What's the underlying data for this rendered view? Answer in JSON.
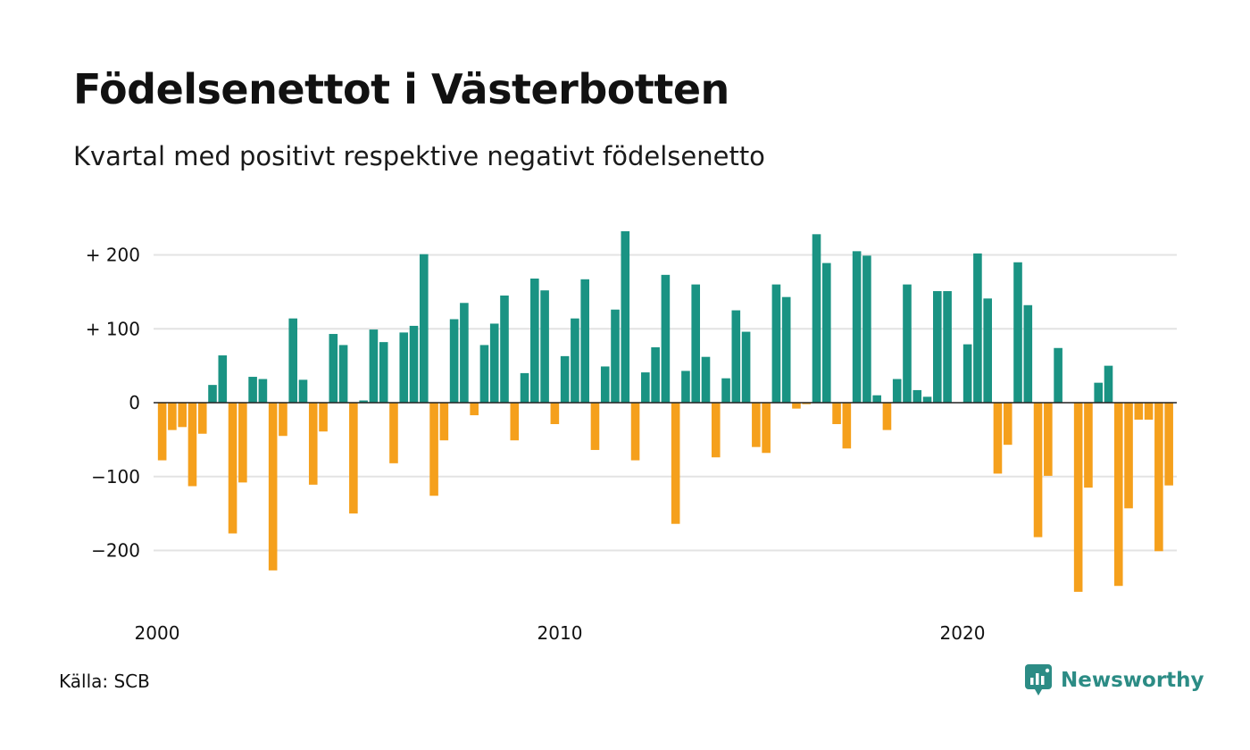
{
  "header": {
    "title": "Födelsenettot i Västerbotten",
    "subtitle": "Kvartal med positivt respektive negativt födelsenetto"
  },
  "footer": {
    "source": "Källa: SCB",
    "brand": "Newsworthy"
  },
  "colors": {
    "positive": "#1a9383",
    "negative": "#f5a01c",
    "grid": "#e3e3e3",
    "axis": "#222222",
    "brand": "#2c8c85"
  },
  "icons": {
    "brand_logo": "newsworthy-logo-icon"
  },
  "chart_data": {
    "type": "bar",
    "title": "Födelsenettot i Västerbotten",
    "subtitle": "Kvartal med positivt respektive negativt födelsenetto",
    "xlabel": "",
    "ylabel": "",
    "ylim": [
      -275,
      235
    ],
    "y_ticks": [
      {
        "value": 200,
        "label": "+ 200"
      },
      {
        "value": 100,
        "label": "+ 100"
      },
      {
        "value": 0,
        "label": "0"
      },
      {
        "value": -100,
        "label": "−100"
      },
      {
        "value": -200,
        "label": "−200"
      }
    ],
    "x_ticks": [
      {
        "value": 2000,
        "label": "2000"
      },
      {
        "value": 2010,
        "label": "2010"
      },
      {
        "value": 2020,
        "label": "2020"
      }
    ],
    "grid": true,
    "legend": "none",
    "start_quarter": "2000 Q1",
    "values": [
      -78,
      -37,
      -33,
      -113,
      -42,
      24,
      64,
      -177,
      -108,
      35,
      32,
      -227,
      -45,
      114,
      31,
      -111,
      -39,
      93,
      78,
      -150,
      3,
      99,
      82,
      -82,
      95,
      104,
      201,
      -126,
      -51,
      113,
      135,
      -17,
      78,
      107,
      145,
      -51,
      40,
      168,
      152,
      -29,
      63,
      114,
      167,
      -64,
      49,
      126,
      232,
      -78,
      41,
      75,
      173,
      -164,
      43,
      160,
      62,
      -74,
      33,
      125,
      96,
      -60,
      -68,
      160,
      143,
      -8,
      -2,
      228,
      189,
      -29,
      -62,
      205,
      199,
      10,
      -37,
      32,
      160,
      17,
      8,
      151,
      151,
      0,
      79,
      202,
      141,
      -96,
      -57,
      190,
      132,
      -182,
      -99,
      74,
      0,
      -256,
      -115,
      27,
      50,
      -248,
      -143,
      -23,
      -23,
      -201,
      -112
    ]
  }
}
